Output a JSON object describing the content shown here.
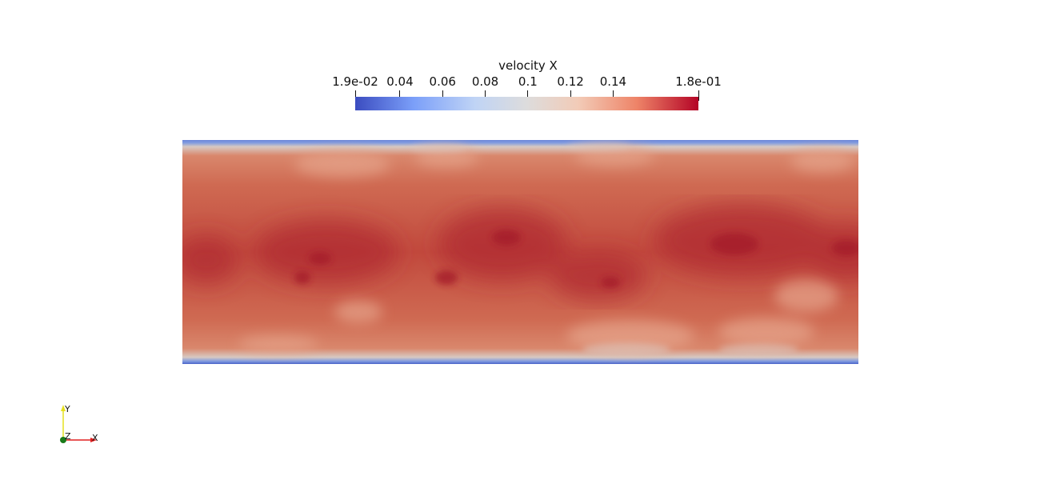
{
  "colorbar": {
    "title": "velocity X",
    "min_label": "1.9e-02",
    "max_label": "1.8e-01",
    "min_value": 0.019,
    "max_value": 0.18,
    "ticks": [
      {
        "value": 0.019,
        "label": "1.9e-02"
      },
      {
        "value": 0.04,
        "label": "0.04"
      },
      {
        "value": 0.06,
        "label": "0.06"
      },
      {
        "value": 0.08,
        "label": "0.08"
      },
      {
        "value": 0.1,
        "label": "0.1"
      },
      {
        "value": 0.12,
        "label": "0.12"
      },
      {
        "value": 0.14,
        "label": "0.14"
      },
      {
        "value": 0.18,
        "label": "1.8e-01"
      }
    ],
    "colormap": [
      "#3b4cc0",
      "#7b9ff9",
      "#c0d4f5",
      "#dddcdc",
      "#f2cbb7",
      "#ee8468",
      "#b40426"
    ]
  },
  "field": {
    "variable": "velocity X",
    "core_color": "#c0463c",
    "wall_color": "#4a63c8"
  },
  "orientation_axes": {
    "x_label": "X",
    "y_label": "Y",
    "z_label": "Z",
    "x_color": "#e02020",
    "y_color": "#e6e020",
    "z_color": "#1a7a1a"
  }
}
